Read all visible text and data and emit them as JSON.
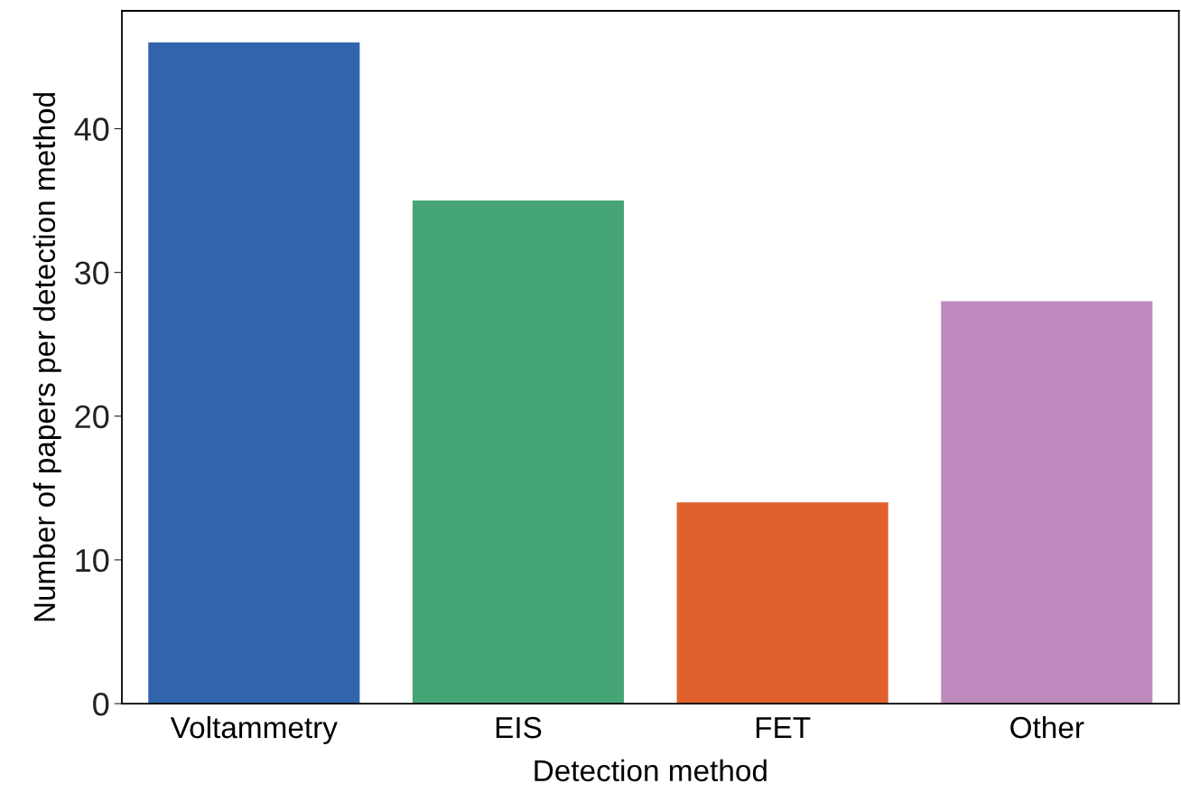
{
  "chart_data": {
    "type": "bar",
    "xlabel": "Detection method",
    "ylabel": "Number of papers per detection method",
    "categories": [
      "Voltammetry",
      "EIS",
      "FET",
      "Other"
    ],
    "values": [
      46,
      35,
      14,
      28
    ],
    "colors": [
      "#3264ad",
      "#46a577",
      "#e0612e",
      "#be8abd"
    ],
    "ylim": [
      0,
      48.2
    ],
    "yticks": [
      0,
      10,
      20,
      30,
      40
    ],
    "grid": false,
    "legend": false
  }
}
